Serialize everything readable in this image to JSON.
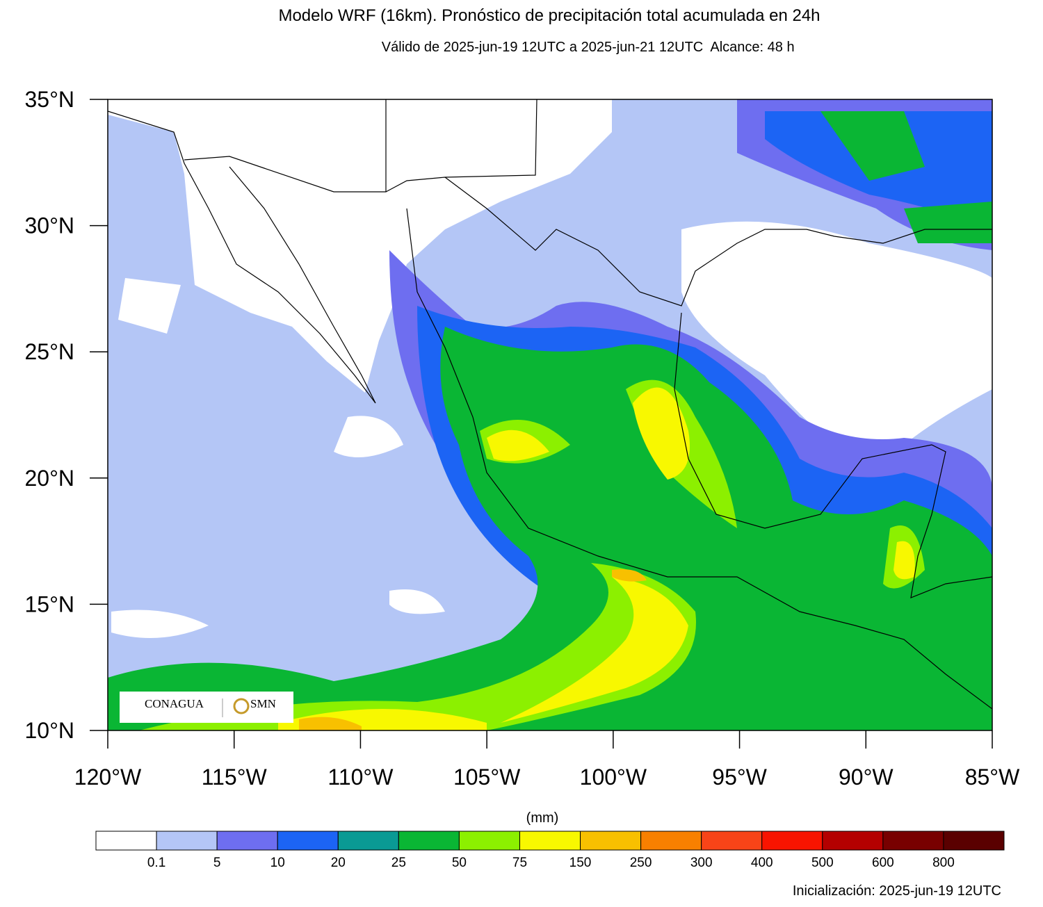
{
  "header": {
    "title": "Modelo WRF (16km). Pronóstico de precipitación total acumulada en 24h",
    "valid": "Válido de 2025-jun-19 12UTC a 2025-jun-21 12UTC",
    "range": "Alcance: 48 h"
  },
  "map": {
    "lonlim": [
      -120,
      -85
    ],
    "latlim": [
      10,
      35
    ],
    "lon_ticks": [
      {
        "value": -120,
        "label": "120°W"
      },
      {
        "value": -115,
        "label": "115°W"
      },
      {
        "value": -110,
        "label": "110°W"
      },
      {
        "value": -105,
        "label": "105°W"
      },
      {
        "value": -100,
        "label": "100°W"
      },
      {
        "value": -95,
        "label": "95°W"
      },
      {
        "value": -90,
        "label": "90°W"
      },
      {
        "value": -85,
        "label": "85°W"
      }
    ],
    "lat_ticks": [
      {
        "value": 35,
        "label": "35°N"
      },
      {
        "value": 30,
        "label": "30°N"
      },
      {
        "value": 25,
        "label": "25°N"
      },
      {
        "value": 20,
        "label": "20°N"
      },
      {
        "value": 15,
        "label": "15°N"
      },
      {
        "value": 10,
        "label": "10°N"
      }
    ]
  },
  "logo": {
    "agency": "CONAGUA",
    "service": "SMN"
  },
  "colorbar": {
    "unit": "(mm)",
    "levels": [
      0.1,
      5,
      10,
      20,
      25,
      50,
      75,
      150,
      250,
      300,
      400,
      500,
      600,
      800
    ],
    "colors": [
      "#ffffff",
      "#b4c6f6",
      "#6e6ef0",
      "#1c64f4",
      "#0a9a94",
      "#0ab634",
      "#8cf000",
      "#f8f800",
      "#f8c000",
      "#f88000",
      "#f84418",
      "#f81400",
      "#b40000",
      "#780000",
      "#5a0000"
    ]
  },
  "footer": {
    "init": "Inicialización: 2025-jun-19 12UTC"
  }
}
